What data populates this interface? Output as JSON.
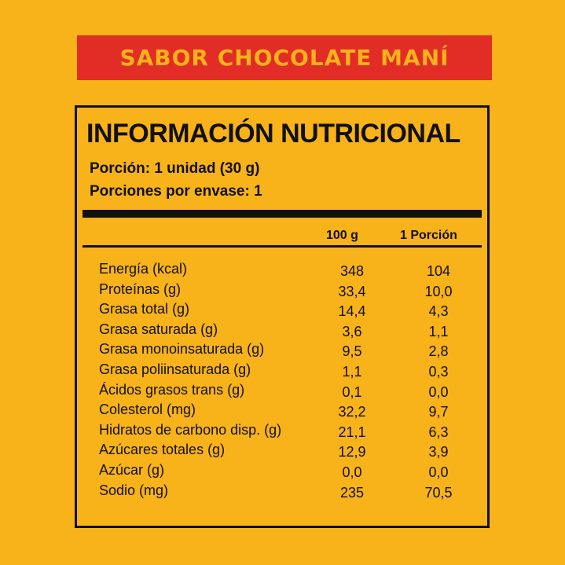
{
  "banner": {
    "text": "SABOR CHOCOLATE MANÍ"
  },
  "panel": {
    "title": "INFORMACIÓN NUTRICIONAL",
    "serving_size": "Porción: 1 unidad (30 g)",
    "servings_per_pack": "Porciones por envase: 1",
    "col_100g": "100 g",
    "col_portion": "1 Porción",
    "rows": [
      {
        "label": "Energía (kcal)",
        "v100": "348",
        "vportion": "104"
      },
      {
        "label": "Proteínas (g)",
        "v100": "33,4",
        "vportion": "10,0"
      },
      {
        "label": "Grasa total (g)",
        "v100": "14,4",
        "vportion": "4,3"
      },
      {
        "label": "Grasa saturada (g)",
        "v100": "3,6",
        "vportion": "1,1"
      },
      {
        "label": "Grasa monoinsaturada (g)",
        "v100": "9,5",
        "vportion": "2,8"
      },
      {
        "label": "Grasa poliinsaturada (g)",
        "v100": "1,1",
        "vportion": "0,3"
      },
      {
        "label": "Ácidos grasos trans (g)",
        "v100": "0,1",
        "vportion": "0,0"
      },
      {
        "label": "Colesterol (mg)",
        "v100": "32,2",
        "vportion": "9,7"
      },
      {
        "label": "Hidratos de carbono disp. (g)",
        "v100": "21,1",
        "vportion": "6,3"
      },
      {
        "label": "Azúcares totales (g)",
        "v100": "12,9",
        "vportion": "3,9"
      },
      {
        "label": "Azúcar (g)",
        "v100": "0,0",
        "vportion": "0,0"
      },
      {
        "label": "Sodio (mg)",
        "v100": "235",
        "vportion": "70,5"
      }
    ]
  },
  "colors": {
    "background": "#f8b21a",
    "banner": "#e22d26",
    "ink": "#111111"
  }
}
